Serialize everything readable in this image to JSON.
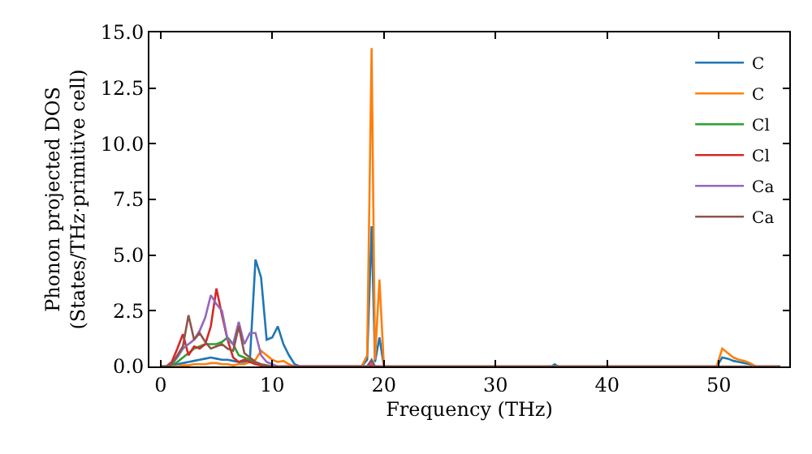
{
  "chart_data": {
    "type": "line",
    "xlabel": "Frequency (THz)",
    "ylabel": "Phonon projected DOS\n(States/THz·primitive cell)",
    "x": [
      0,
      0.5,
      1,
      1.5,
      2,
      2.5,
      3,
      3.5,
      4,
      4.5,
      5,
      5.5,
      6,
      6.5,
      7,
      7.5,
      8,
      8.5,
      9,
      9.5,
      10,
      10.5,
      11,
      11.5,
      12,
      12.5,
      13,
      18.0,
      18.5,
      18.9,
      19.2,
      19.6,
      20.0,
      20.5,
      35.0,
      35.3,
      35.6,
      49.8,
      50.3,
      50.8,
      51.3,
      51.8,
      52.3,
      52.8,
      53.3,
      55.5
    ],
    "series": [
      {
        "name": "C",
        "color": "#1f77b4",
        "values": [
          0,
          0,
          0.05,
          0.1,
          0.15,
          0.2,
          0.25,
          0.3,
          0.35,
          0.4,
          0.35,
          0.3,
          0.3,
          0.25,
          0.2,
          0.2,
          0.3,
          4.8,
          4.0,
          1.2,
          1.3,
          1.8,
          1.0,
          0.5,
          0.1,
          0,
          0,
          0,
          0.3,
          6.3,
          0.2,
          1.3,
          0,
          0,
          0,
          0.1,
          0,
          0,
          0.4,
          0.35,
          0.25,
          0.2,
          0.15,
          0.1,
          0,
          0
        ]
      },
      {
        "name": "C",
        "color": "#ff7f0e",
        "values": [
          0,
          0,
          0,
          0,
          0.05,
          0.05,
          0.1,
          0.1,
          0.1,
          0.15,
          0.15,
          0.1,
          0.1,
          0.05,
          0.1,
          0.1,
          0.2,
          0.3,
          0.7,
          0.5,
          0.3,
          0.2,
          0.25,
          0.1,
          0,
          0,
          0,
          0,
          0.5,
          14.3,
          0.3,
          3.9,
          0,
          0,
          0,
          0,
          0,
          0,
          0.8,
          0.6,
          0.4,
          0.3,
          0.25,
          0.15,
          0,
          0
        ]
      },
      {
        "name": "Cl",
        "color": "#2ca02c",
        "values": [
          null,
          0,
          0.05,
          0.2,
          0.4,
          0.6,
          0.8,
          0.9,
          1.0,
          1.0,
          1.0,
          1.1,
          1.3,
          1.0,
          0.5,
          0.4,
          0.3,
          0.2,
          null,
          null,
          null,
          null,
          null,
          null,
          null,
          null,
          null,
          null,
          null,
          null,
          null,
          null,
          null,
          null,
          null,
          null,
          null,
          null,
          null,
          null,
          null,
          null,
          null,
          null,
          null,
          null
        ]
      },
      {
        "name": "Cl",
        "color": "#d62728",
        "values": [
          0,
          0,
          0.2,
          0.8,
          1.45,
          0.5,
          0.9,
          0.8,
          1.0,
          1.8,
          3.5,
          2.3,
          1.2,
          0.4,
          0.2,
          0.3,
          0.2,
          0.1,
          0.05,
          0,
          0,
          0,
          0,
          0,
          0,
          0,
          0,
          0,
          0,
          0.05,
          0,
          0,
          0,
          null,
          null,
          null,
          null,
          null,
          null,
          null,
          null,
          null,
          null,
          null,
          null,
          null
        ]
      },
      {
        "name": "Ca",
        "color": "#9467bd",
        "values": [
          0,
          0,
          0.1,
          0.4,
          0.8,
          1.0,
          1.2,
          1.6,
          2.2,
          3.2,
          2.8,
          2.5,
          1.2,
          1.0,
          2.0,
          1.0,
          1.5,
          1.5,
          0.5,
          0.2,
          0.1,
          0,
          0,
          0,
          0,
          0,
          0,
          0,
          0,
          0.2,
          0,
          0,
          null,
          null,
          null,
          null,
          null,
          null,
          null,
          null,
          null,
          null,
          null,
          null,
          null,
          null
        ]
      },
      {
        "name": "Ca",
        "color": "#8c564b",
        "values": [
          0,
          0,
          0.1,
          0.5,
          0.9,
          2.3,
          1.2,
          1.5,
          1.1,
          0.8,
          0.9,
          1.0,
          0.8,
          0.7,
          1.8,
          0.6,
          0.4,
          0.2,
          0.1,
          0.05,
          0,
          0,
          0,
          0,
          0,
          0,
          0,
          0,
          0,
          0.3,
          0,
          0,
          0,
          0,
          0,
          0,
          0,
          0,
          0,
          0,
          0,
          0,
          0,
          0,
          0,
          0
        ]
      }
    ],
    "xlim": [
      -1,
      56.3
    ],
    "ylim": [
      0,
      15
    ],
    "xticks": [
      0,
      10,
      20,
      30,
      40,
      50
    ],
    "yticks": [
      {
        "value": 0,
        "label": "0.0"
      },
      {
        "value": 2.5,
        "label": "2.5"
      },
      {
        "value": 5,
        "label": "5.0"
      },
      {
        "value": 7.5,
        "label": "7.5"
      },
      {
        "value": 10,
        "label": "10.0"
      },
      {
        "value": 12.5,
        "label": "12.5"
      },
      {
        "value": 15,
        "label": "15.0"
      }
    ],
    "legend": "top right",
    "marker": "none",
    "line_style": "solid"
  }
}
